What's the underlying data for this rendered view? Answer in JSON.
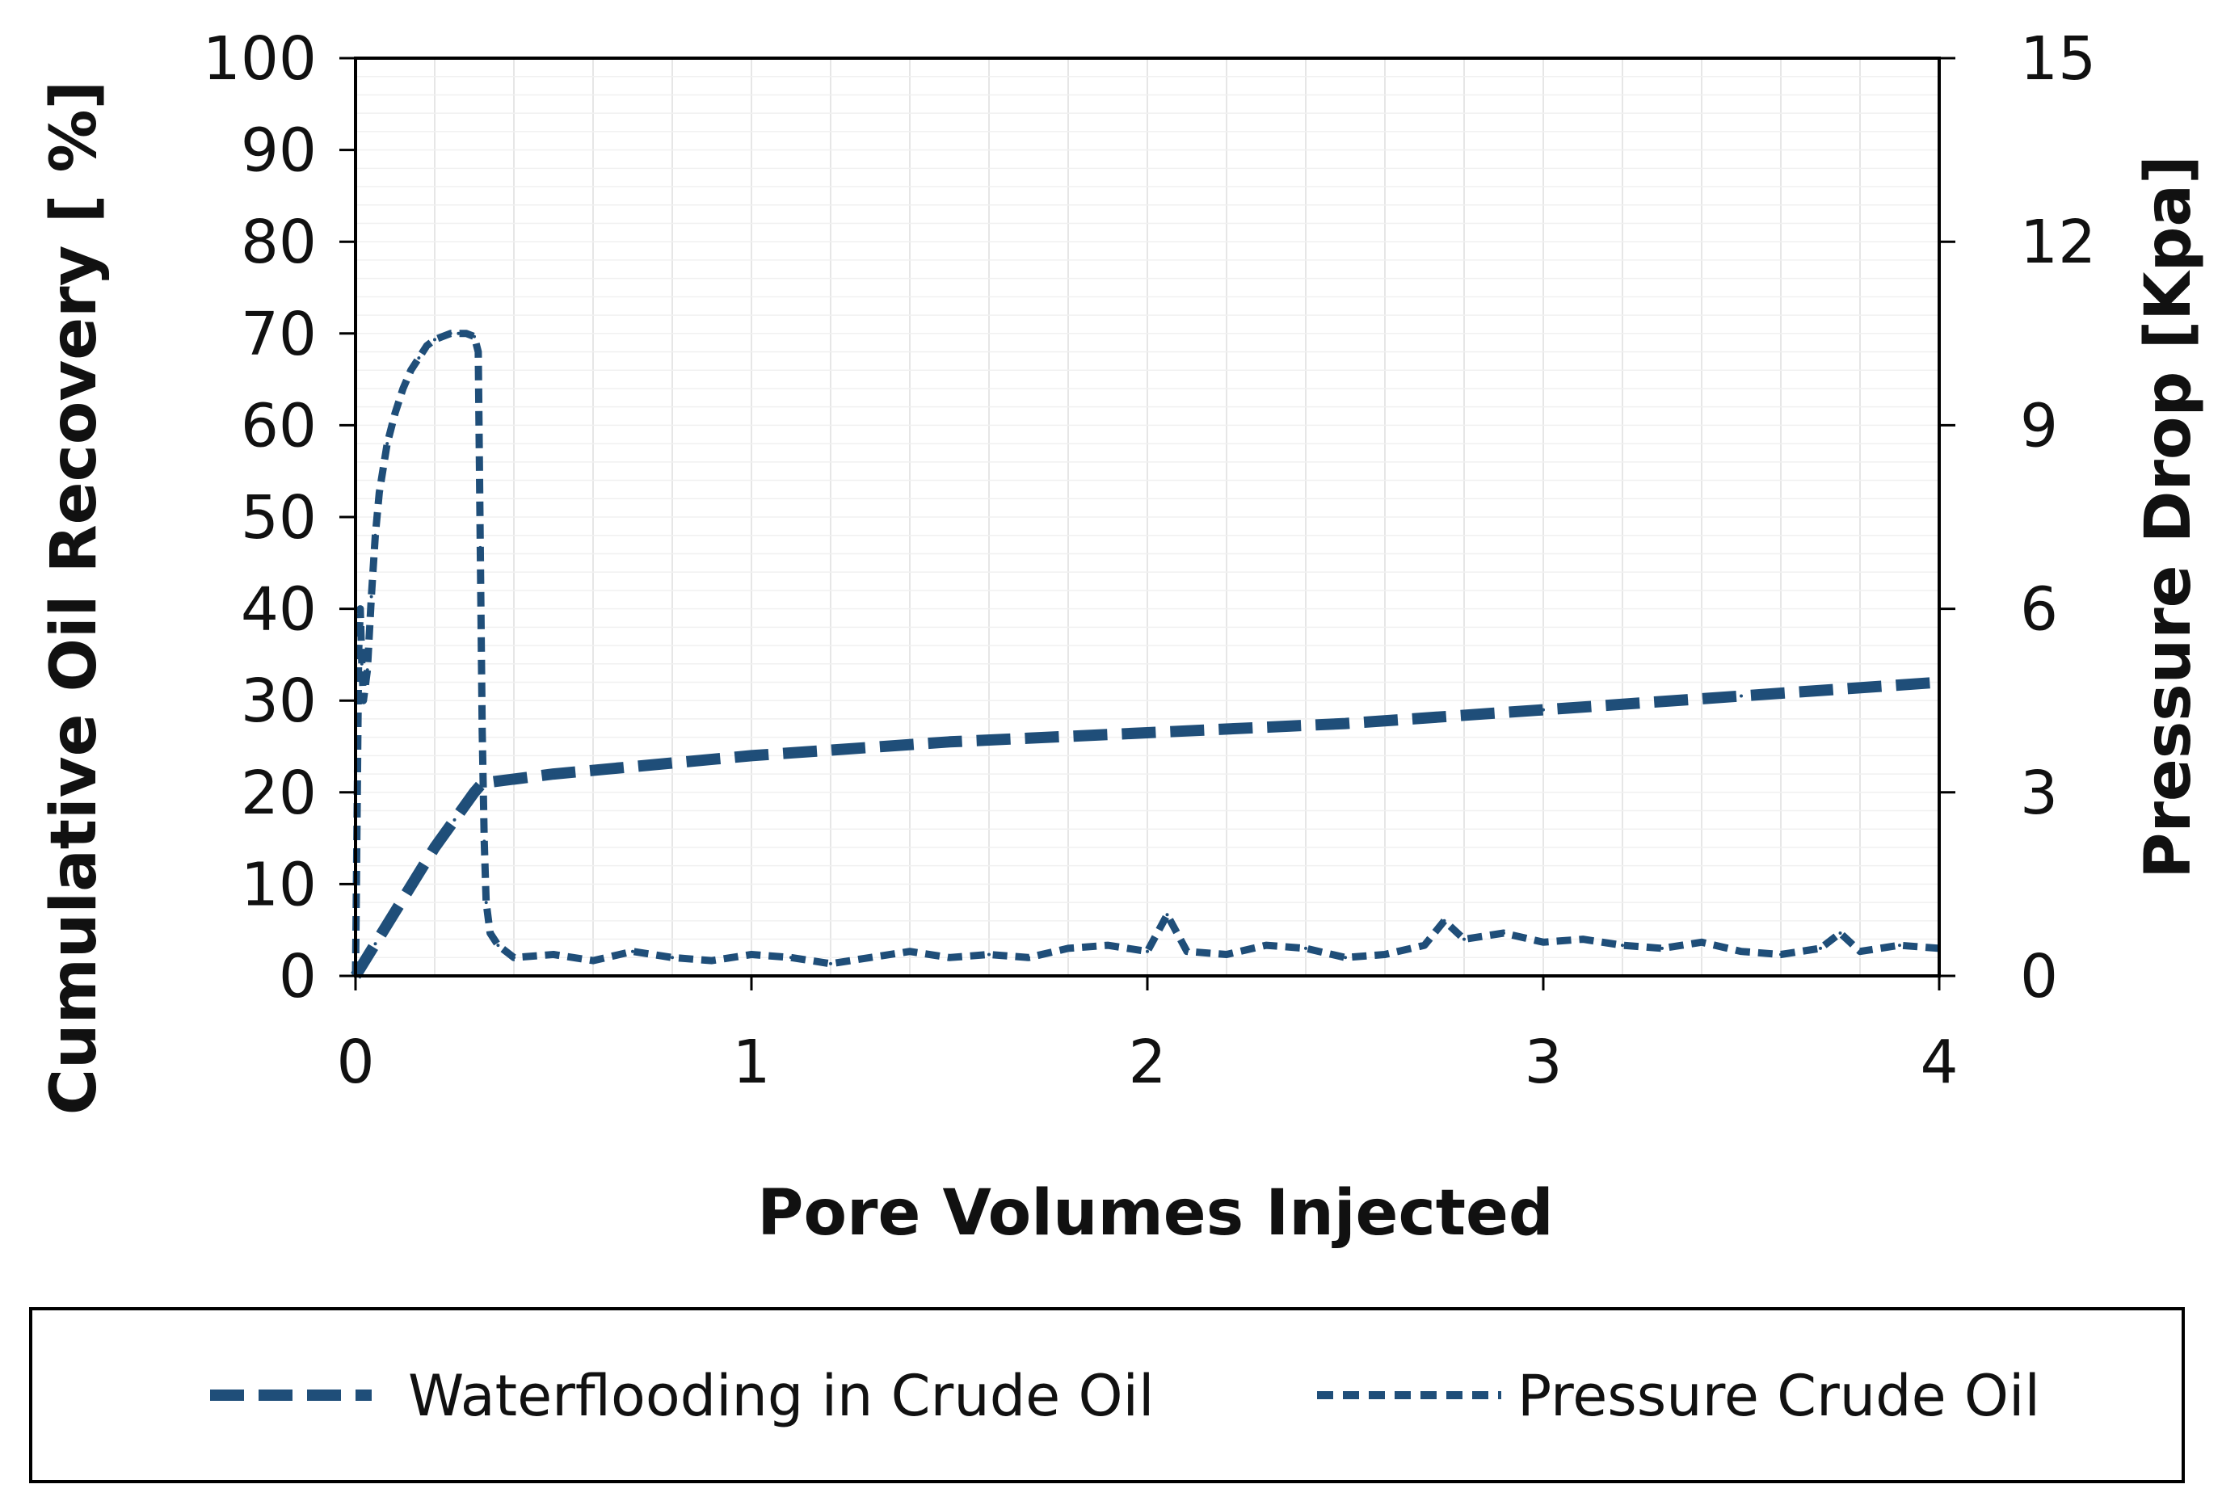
{
  "chart_data": {
    "type": "line",
    "xlabel": "Pore Volumes Injected",
    "ylabel": "Cumulative Oil Recovery [ %]",
    "y2label": "Pressure Drop [Kpa]",
    "xlim": [
      0,
      4
    ],
    "ylim": [
      0,
      100
    ],
    "y2lim": [
      0,
      15
    ],
    "x_ticks": [
      "0",
      "1",
      "2",
      "3",
      "4"
    ],
    "y_ticks": [
      "0",
      "10",
      "20",
      "30",
      "40",
      "50",
      "60",
      "70",
      "80",
      "90",
      "100"
    ],
    "y2_ticks": [
      "0",
      "3",
      "6",
      "9",
      "12",
      "15"
    ],
    "grid": true,
    "legend_position": "bottom",
    "colors": {
      "series": "#1f4e79",
      "grid": "#e6e6e6",
      "frame": "#000000"
    },
    "series": [
      {
        "name": "Waterflooding in Crude Oil",
        "axis": "left",
        "style": "long-dash",
        "x": [
          0,
          0.05,
          0.1,
          0.15,
          0.2,
          0.25,
          0.3,
          0.32,
          0.5,
          1.0,
          1.5,
          2.0,
          2.5,
          3.0,
          3.5,
          4.0
        ],
        "y": [
          0,
          3.5,
          7,
          10.5,
          14,
          17,
          20,
          21,
          22,
          24,
          25.5,
          26.5,
          27.5,
          29,
          30.5,
          32
        ]
      },
      {
        "name": "Pressure Crude Oil",
        "axis": "right",
        "style": "short-dash",
        "x": [
          0,
          0.004,
          0.008,
          0.012,
          0.016,
          0.02,
          0.03,
          0.04,
          0.05,
          0.06,
          0.08,
          0.1,
          0.12,
          0.14,
          0.16,
          0.18,
          0.2,
          0.22,
          0.24,
          0.26,
          0.28,
          0.3,
          0.31,
          0.315,
          0.32,
          0.325,
          0.33,
          0.34,
          0.36,
          0.4,
          0.5,
          0.6,
          0.7,
          0.8,
          0.9,
          1.0,
          1.1,
          1.2,
          1.3,
          1.4,
          1.5,
          1.6,
          1.7,
          1.8,
          1.9,
          2.0,
          2.05,
          2.1,
          2.2,
          2.3,
          2.4,
          2.5,
          2.6,
          2.7,
          2.75,
          2.8,
          2.9,
          3.0,
          3.1,
          3.2,
          3.3,
          3.4,
          3.5,
          3.6,
          3.7,
          3.75,
          3.8,
          3.9,
          4.0
        ],
        "y": [
          0,
          2.7,
          5.3,
          6.0,
          5.1,
          4.5,
          5.0,
          6.2,
          7.2,
          7.9,
          8.7,
          9.2,
          9.6,
          9.9,
          10.1,
          10.3,
          10.4,
          10.45,
          10.5,
          10.5,
          10.5,
          10.45,
          10.2,
          7.0,
          4.0,
          2.2,
          1.2,
          0.7,
          0.5,
          0.3,
          0.35,
          0.25,
          0.4,
          0.3,
          0.25,
          0.35,
          0.3,
          0.2,
          0.3,
          0.4,
          0.3,
          0.35,
          0.3,
          0.45,
          0.5,
          0.4,
          1.0,
          0.4,
          0.35,
          0.5,
          0.45,
          0.3,
          0.35,
          0.5,
          0.9,
          0.6,
          0.7,
          0.55,
          0.6,
          0.5,
          0.45,
          0.55,
          0.4,
          0.35,
          0.45,
          0.7,
          0.4,
          0.5,
          0.45
        ]
      }
    ]
  }
}
